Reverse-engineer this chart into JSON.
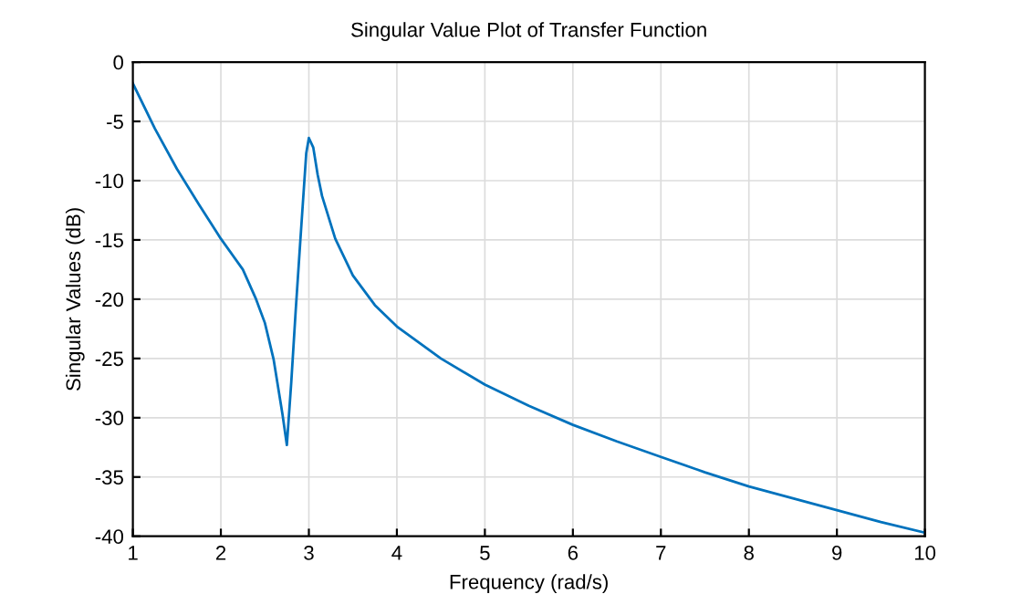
{
  "chart_data": {
    "type": "line",
    "title": "Singular Value Plot of Transfer Function",
    "xlabel": "Frequency (rad/s)",
    "ylabel": "Singular Values (dB)",
    "x": [
      1,
      1.25,
      1.5,
      1.75,
      2,
      2.25,
      2.4,
      2.5,
      2.6,
      2.7,
      2.75,
      2.8,
      2.85,
      2.9,
      2.97,
      3.0,
      3.05,
      3.1,
      3.15,
      3.3,
      3.5,
      3.75,
      4,
      4.5,
      5,
      5.5,
      6,
      6.5,
      7,
      7.5,
      8,
      8.5,
      9,
      9.5,
      10
    ],
    "series": [
      {
        "color": "#0072bd",
        "values": [
          -1.8,
          -5.6,
          -9.0,
          -12.0,
          -14.9,
          -17.5,
          -20,
          -22,
          -25.1,
          -29.7,
          -32.3,
          -27,
          -21,
          -15.4,
          -7.7,
          -6.4,
          -7.2,
          -9.5,
          -11.3,
          -14.9,
          -18,
          -20.5,
          -22.3,
          -25,
          -27.2,
          -29,
          -30.6,
          -32,
          -33.3,
          -34.6,
          -35.8,
          -36.8,
          -37.8,
          -38.8,
          -39.7
        ]
      }
    ],
    "xlim": [
      1,
      10
    ],
    "xticks": [
      1,
      2,
      3,
      4,
      5,
      6,
      7,
      8,
      9,
      10
    ],
    "ylim": [
      -40,
      0
    ],
    "yticks": [
      -40,
      -35,
      -30,
      -25,
      -20,
      -15,
      -10,
      -5,
      0
    ],
    "grid": true,
    "legend": false,
    "marker": "none",
    "line_style": "solid"
  }
}
